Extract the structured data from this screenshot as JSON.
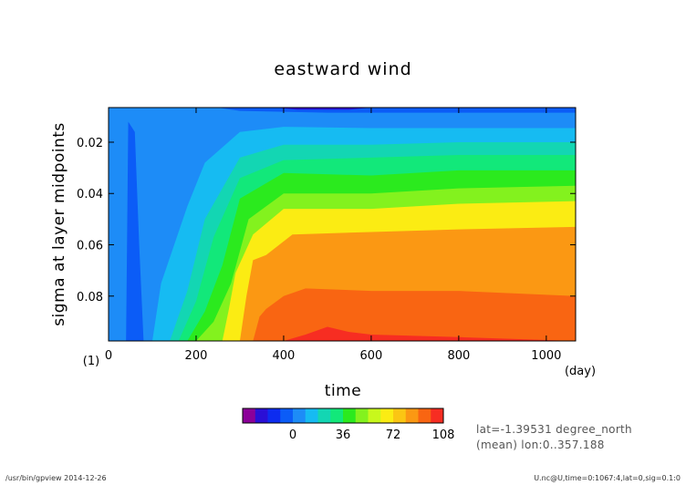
{
  "chart_data": {
    "type": "heatmap",
    "title": "eastward wind",
    "xlabel": "time",
    "x_unit": "(day)",
    "ylabel": "sigma at layer midpoints",
    "y_unit": "(1)",
    "xlim": [
      0,
      1067
    ],
    "ylim": [
      0.0065,
      0.0975
    ],
    "x_ticks": [
      "0",
      "200",
      "400",
      "600",
      "800",
      "1000"
    ],
    "y_ticks": [
      "0.02",
      "0.04",
      "0.06",
      "0.08"
    ],
    "colorbar": {
      "levels": [
        -36,
        -27,
        -18,
        -9,
        0,
        9,
        18,
        27,
        36,
        45,
        54,
        63,
        72,
        81,
        90,
        99,
        108
      ],
      "tick_labels": [
        "0",
        "36",
        "72",
        "108"
      ],
      "colors": [
        "#8c0099",
        "#2a0fd6",
        "#0d2cf0",
        "#0b5cf7",
        "#1d8cf7",
        "#16bbf2",
        "#13d6b3",
        "#12e87a",
        "#2bea1e",
        "#83f21e",
        "#c8f81c",
        "#fbec13",
        "#fbc613",
        "#fb9813",
        "#f96512",
        "#f72d22"
      ]
    },
    "series": [
      {
        "x": [
          0,
          100,
          120,
          180,
          220,
          300,
          400,
          600,
          800,
          1067
        ],
        "y": [
          0.0975,
          0.0975,
          0.075,
          0.045,
          0.028,
          0.016,
          0.014,
          0.0145,
          0.0145,
          0.0145
        ]
      },
      {
        "x": [
          0,
          140,
          180,
          220,
          300,
          400,
          600,
          800,
          1067
        ],
        "y": [
          0.0975,
          0.0975,
          0.078,
          0.05,
          0.026,
          0.021,
          0.021,
          0.02,
          0.02
        ]
      },
      {
        "x": [
          0,
          160,
          200,
          240,
          300,
          400,
          600,
          800,
          1067
        ],
        "y": [
          0.0975,
          0.0975,
          0.082,
          0.057,
          0.034,
          0.027,
          0.026,
          0.025,
          0.025
        ]
      },
      {
        "x": [
          0,
          180,
          220,
          260,
          300,
          400,
          600,
          800,
          1067
        ],
        "y": [
          0.0975,
          0.0975,
          0.086,
          0.068,
          0.042,
          0.032,
          0.033,
          0.031,
          0.031
        ]
      },
      {
        "x": [
          0,
          200,
          240,
          280,
          320,
          400,
          600,
          800,
          1067
        ],
        "y": [
          0.0975,
          0.0975,
          0.09,
          0.075,
          0.05,
          0.04,
          0.04,
          0.038,
          0.037
        ]
      },
      {
        "x": [
          0,
          260,
          275,
          290,
          330,
          400,
          600,
          800,
          1067
        ],
        "y": [
          0.0975,
          0.0975,
          0.085,
          0.071,
          0.056,
          0.046,
          0.046,
          0.044,
          0.043
        ]
      },
      {
        "x": [
          0,
          300,
          315,
          330,
          360,
          420,
          600,
          800,
          1067
        ],
        "y": [
          0.0975,
          0.0975,
          0.08,
          0.066,
          0.064,
          0.056,
          0.055,
          0.054,
          0.053
        ]
      },
      {
        "x": [
          0,
          330,
          345,
          360,
          400,
          450,
          600,
          800,
          1067
        ],
        "y": [
          0.0975,
          0.0975,
          0.088,
          0.085,
          0.08,
          0.077,
          0.078,
          0.078,
          0.08
        ]
      },
      {
        "x": [
          0,
          400,
          450,
          500,
          550,
          600,
          800,
          1067
        ],
        "y": [
          0.0975,
          0.0975,
          0.095,
          0.092,
          0.094,
          0.095,
          0.096,
          0.0975
        ]
      }
    ],
    "annotations": [
      "lat=-1.39531 degree_north",
      "(mean) lon:0..357.188"
    ],
    "footer_left": "/usr/bin/gpview  2014-12-26",
    "footer_right": "U.nc@U,time=0:1067:4,lat=0,sig=0.1:0",
    "grid": false
  }
}
